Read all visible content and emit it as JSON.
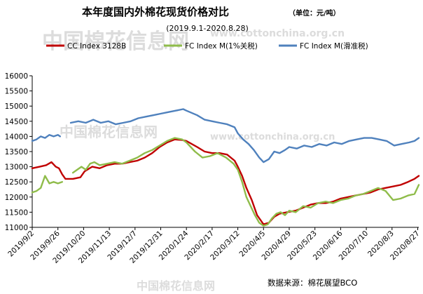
{
  "chart_data": {
    "type": "line",
    "title": "本年度国内外棉花现货价格对比",
    "unit_note": "（单位：元/吨）",
    "subtitle": "(2019.9.1-2020.8.28)",
    "source": "数据来源：棉花展望BCO",
    "watermark": "中国棉花信息网",
    "watermark_url": "www.cottonchina.org.cn",
    "xlabel": "",
    "ylabel": "",
    "ylim": [
      11000,
      16000
    ],
    "yticks": [
      11000,
      11500,
      12000,
      12500,
      13000,
      13500,
      14000,
      14500,
      15000,
      15500,
      16000
    ],
    "xticks": [
      "2019/9/2",
      "2019/9/26",
      "2019/10/20",
      "2019/11/13",
      "2019/12/7",
      "2019/12/31",
      "2020/1/24",
      "2020/2/17",
      "2020/3/12",
      "2020/4/5",
      "2020/4/29",
      "2020/5/23",
      "2020/6/16",
      "2020/7/10",
      "2020/8/3",
      "2020/8/27"
    ],
    "x_start": "2019-09-02",
    "x_end": "2020-08-28",
    "legend_position": "top",
    "grid": false,
    "series": [
      {
        "name": "CC Index 3128B",
        "color": "#c00000",
        "points": [
          [
            "2019-09-02",
            12950
          ],
          [
            "2019-09-09",
            13000
          ],
          [
            "2019-09-15",
            13050
          ],
          [
            "2019-09-20",
            13150
          ],
          [
            "2019-09-24",
            13000
          ],
          [
            "2019-09-27",
            12950
          ],
          [
            "2019-09-30",
            12750
          ],
          [
            "2019-10-03",
            12600
          ],
          [
            "2019-10-10",
            12600
          ],
          [
            "2019-10-17",
            12650
          ],
          [
            "2019-10-21",
            12850
          ],
          [
            "2019-10-28",
            13000
          ],
          [
            "2019-11-04",
            12950
          ],
          [
            "2019-11-11",
            13050
          ],
          [
            "2019-11-18",
            13100
          ],
          [
            "2019-11-25",
            13100
          ],
          [
            "2019-12-02",
            13150
          ],
          [
            "2019-12-09",
            13200
          ],
          [
            "2019-12-16",
            13300
          ],
          [
            "2019-12-23",
            13450
          ],
          [
            "2019-12-30",
            13650
          ],
          [
            "2020-01-06",
            13800
          ],
          [
            "2020-01-13",
            13900
          ],
          [
            "2020-01-20",
            13880
          ],
          [
            "2020-01-24",
            13850
          ],
          [
            "2020-02-03",
            13650
          ],
          [
            "2020-02-10",
            13500
          ],
          [
            "2020-02-17",
            13450
          ],
          [
            "2020-02-24",
            13450
          ],
          [
            "2020-03-02",
            13400
          ],
          [
            "2020-03-09",
            13200
          ],
          [
            "2020-03-12",
            13000
          ],
          [
            "2020-03-16",
            12700
          ],
          [
            "2020-03-20",
            12300
          ],
          [
            "2020-03-25",
            11900
          ],
          [
            "2020-03-30",
            11400
          ],
          [
            "2020-04-05",
            11100
          ],
          [
            "2020-04-10",
            11150
          ],
          [
            "2020-04-15",
            11350
          ],
          [
            "2020-04-20",
            11450
          ],
          [
            "2020-04-27",
            11500
          ],
          [
            "2020-05-05",
            11550
          ],
          [
            "2020-05-12",
            11650
          ],
          [
            "2020-05-19",
            11750
          ],
          [
            "2020-05-26",
            11800
          ],
          [
            "2020-06-02",
            11800
          ],
          [
            "2020-06-09",
            11850
          ],
          [
            "2020-06-16",
            11950
          ],
          [
            "2020-06-23",
            12000
          ],
          [
            "2020-06-30",
            12050
          ],
          [
            "2020-07-07",
            12100
          ],
          [
            "2020-07-14",
            12150
          ],
          [
            "2020-07-21",
            12250
          ],
          [
            "2020-07-28",
            12300
          ],
          [
            "2020-08-04",
            12350
          ],
          [
            "2020-08-11",
            12400
          ],
          [
            "2020-08-18",
            12500
          ],
          [
            "2020-08-24",
            12600
          ],
          [
            "2020-08-28",
            12700
          ]
        ]
      },
      {
        "name": "FC Index M(1%关税)",
        "color": "#8fbc4a",
        "points": [
          [
            "2019-09-02",
            12150
          ],
          [
            "2019-09-06",
            12200
          ],
          [
            "2019-09-10",
            12300
          ],
          [
            "2019-09-14",
            12700
          ],
          [
            "2019-09-18",
            12450
          ],
          [
            "2019-09-22",
            12500
          ],
          [
            "2019-09-26",
            12450
          ],
          [
            "2019-09-30",
            12500
          ],
          [
            "2019-10-04",
            null
          ],
          [
            "2019-10-10",
            12800
          ],
          [
            "2019-10-14",
            12900
          ],
          [
            "2019-10-18",
            13000
          ],
          [
            "2019-10-22",
            12900
          ],
          [
            "2019-10-26",
            13100
          ],
          [
            "2019-10-30",
            13150
          ],
          [
            "2019-11-04",
            13050
          ],
          [
            "2019-11-11",
            13100
          ],
          [
            "2019-11-18",
            13150
          ],
          [
            "2019-11-25",
            13100
          ],
          [
            "2019-12-02",
            13200
          ],
          [
            "2019-12-09",
            13300
          ],
          [
            "2019-12-16",
            13450
          ],
          [
            "2019-12-23",
            13550
          ],
          [
            "2019-12-30",
            13700
          ],
          [
            "2020-01-06",
            13850
          ],
          [
            "2020-01-13",
            13950
          ],
          [
            "2020-01-20",
            13900
          ],
          [
            "2020-01-24",
            13800
          ],
          [
            "2020-02-01",
            13500
          ],
          [
            "2020-02-08",
            13300
          ],
          [
            "2020-02-15",
            13350
          ],
          [
            "2020-02-22",
            13450
          ],
          [
            "2020-03-01",
            13300
          ],
          [
            "2020-03-08",
            13100
          ],
          [
            "2020-03-12",
            12900
          ],
          [
            "2020-03-16",
            12500
          ],
          [
            "2020-03-20",
            12000
          ],
          [
            "2020-03-24",
            11700
          ],
          [
            "2020-03-28",
            11400
          ],
          [
            "2020-04-01",
            11150
          ],
          [
            "2020-04-05",
            11050
          ],
          [
            "2020-04-09",
            11100
          ],
          [
            "2020-04-13",
            11300
          ],
          [
            "2020-04-17",
            11450
          ],
          [
            "2020-04-21",
            11500
          ],
          [
            "2020-04-25",
            11400
          ],
          [
            "2020-04-29",
            11550
          ],
          [
            "2020-05-05",
            11500
          ],
          [
            "2020-05-12",
            11700
          ],
          [
            "2020-05-19",
            11650
          ],
          [
            "2020-05-26",
            11800
          ],
          [
            "2020-06-02",
            11850
          ],
          [
            "2020-06-09",
            11800
          ],
          [
            "2020-06-16",
            11900
          ],
          [
            "2020-06-23",
            11950
          ],
          [
            "2020-06-30",
            12050
          ],
          [
            "2020-07-07",
            12100
          ],
          [
            "2020-07-14",
            12200
          ],
          [
            "2020-07-21",
            12300
          ],
          [
            "2020-07-28",
            12200
          ],
          [
            "2020-08-04",
            11900
          ],
          [
            "2020-08-11",
            11950
          ],
          [
            "2020-08-18",
            12050
          ],
          [
            "2020-08-24",
            12100
          ],
          [
            "2020-08-28",
            12400
          ]
        ]
      },
      {
        "name": "FC Index M(滑准税)",
        "color": "#4f81bd",
        "points": [
          [
            "2019-09-02",
            13850
          ],
          [
            "2019-09-06",
            13900
          ],
          [
            "2019-09-10",
            14000
          ],
          [
            "2019-09-14",
            13950
          ],
          [
            "2019-09-18",
            14050
          ],
          [
            "2019-09-22",
            14000
          ],
          [
            "2019-09-26",
            14050
          ],
          [
            "2019-09-28",
            14000
          ],
          [
            "2019-10-04",
            null
          ],
          [
            "2019-10-08",
            14450
          ],
          [
            "2019-10-15",
            14500
          ],
          [
            "2019-10-22",
            14450
          ],
          [
            "2019-10-29",
            14550
          ],
          [
            "2019-11-05",
            14450
          ],
          [
            "2019-11-12",
            14500
          ],
          [
            "2019-11-19",
            14400
          ],
          [
            "2019-11-26",
            14450
          ],
          [
            "2019-12-03",
            14500
          ],
          [
            "2019-12-10",
            14600
          ],
          [
            "2019-12-17",
            14650
          ],
          [
            "2019-12-24",
            14700
          ],
          [
            "2019-12-31",
            14750
          ],
          [
            "2020-01-07",
            14800
          ],
          [
            "2020-01-14",
            14850
          ],
          [
            "2020-01-21",
            14900
          ],
          [
            "2020-01-24",
            14850
          ],
          [
            "2020-02-03",
            14700
          ],
          [
            "2020-02-10",
            14550
          ],
          [
            "2020-02-17",
            14500
          ],
          [
            "2020-02-24",
            14450
          ],
          [
            "2020-03-02",
            14400
          ],
          [
            "2020-03-09",
            14300
          ],
          [
            "2020-03-12",
            14100
          ],
          [
            "2020-03-17",
            13900
          ],
          [
            "2020-03-22",
            13750
          ],
          [
            "2020-03-27",
            13550
          ],
          [
            "2020-04-01",
            13300
          ],
          [
            "2020-04-05",
            13150
          ],
          [
            "2020-04-10",
            13250
          ],
          [
            "2020-04-15",
            13500
          ],
          [
            "2020-04-20",
            13450
          ],
          [
            "2020-04-25",
            13550
          ],
          [
            "2020-04-29",
            13650
          ],
          [
            "2020-05-06",
            13600
          ],
          [
            "2020-05-13",
            13700
          ],
          [
            "2020-05-20",
            13650
          ],
          [
            "2020-05-27",
            13750
          ],
          [
            "2020-06-03",
            13700
          ],
          [
            "2020-06-10",
            13800
          ],
          [
            "2020-06-17",
            13750
          ],
          [
            "2020-06-24",
            13850
          ],
          [
            "2020-07-01",
            13900
          ],
          [
            "2020-07-08",
            13950
          ],
          [
            "2020-07-15",
            13950
          ],
          [
            "2020-07-22",
            13900
          ],
          [
            "2020-07-29",
            13850
          ],
          [
            "2020-08-05",
            13700
          ],
          [
            "2020-08-12",
            13750
          ],
          [
            "2020-08-19",
            13800
          ],
          [
            "2020-08-24",
            13850
          ],
          [
            "2020-08-28",
            13950
          ]
        ]
      }
    ]
  }
}
